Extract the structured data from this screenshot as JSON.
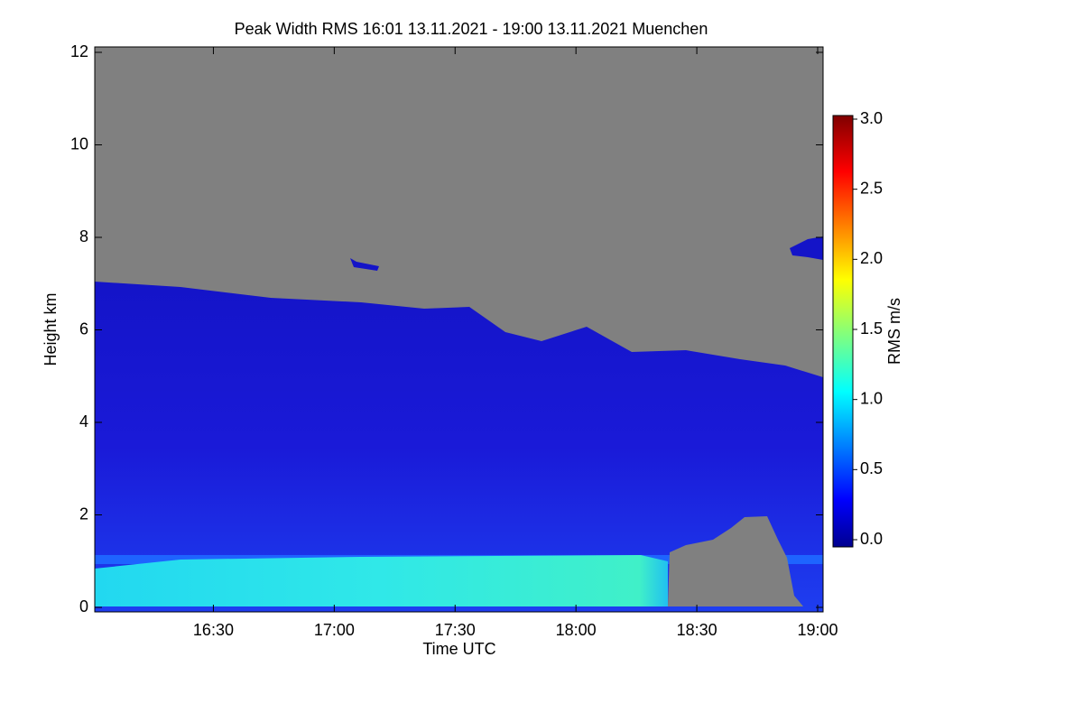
{
  "chart_data": {
    "type": "heatmap",
    "title": "Peak Width RMS   16:01 13.11.2021 - 19:00 13.11.2021 Muenchen",
    "xlabel": "Time UTC",
    "ylabel": "Height km",
    "xlim": [
      "16:01",
      "19:00"
    ],
    "xticks": [
      "16:30",
      "17:00",
      "17:30",
      "18:00",
      "18:30",
      "19:00"
    ],
    "ylim": [
      0,
      12
    ],
    "yticks": [
      0,
      2,
      4,
      6,
      8,
      10,
      12
    ],
    "colorbar": {
      "label": "RMS m/s",
      "clim": [
        0,
        3
      ],
      "ticks": [
        {
          "value": 0,
          "label": "0.0"
        },
        0.5,
        {
          "value": 1,
          "label": "1.0"
        },
        1.5,
        {
          "value": 2,
          "label": "2.0"
        },
        2.5,
        {
          "value": 3,
          "label": "3.0"
        }
      ],
      "colormap": "jet"
    }
  }
}
